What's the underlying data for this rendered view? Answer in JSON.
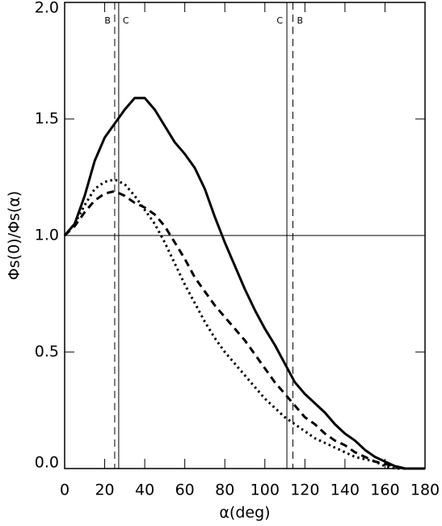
{
  "chart_data": {
    "type": "line",
    "xlabel": "α(deg)",
    "ylabel": "Φs(0)/Φs(α)",
    "x": [
      0,
      5,
      10,
      15,
      20,
      25,
      30,
      35,
      40,
      45,
      50,
      55,
      60,
      65,
      70,
      75,
      80,
      85,
      90,
      95,
      100,
      105,
      110,
      115,
      120,
      125,
      130,
      135,
      140,
      145,
      150,
      155,
      160,
      165,
      170,
      175,
      180
    ],
    "series": [
      {
        "color": "#000000",
        "dash": "solid",
        "values": [
          1.0,
          1.05,
          1.17,
          1.32,
          1.42,
          1.48,
          1.54,
          1.59,
          1.59,
          1.54,
          1.47,
          1.4,
          1.35,
          1.29,
          1.2,
          1.08,
          0.97,
          0.87,
          0.77,
          0.68,
          0.6,
          0.53,
          0.45,
          0.37,
          0.32,
          0.28,
          0.24,
          0.19,
          0.15,
          0.12,
          0.08,
          0.05,
          0.03,
          0.01,
          0.0,
          0.0,
          0.0
        ]
      },
      {
        "color": "#000000",
        "dash": "dashed",
        "values": [
          1.0,
          1.04,
          1.1,
          1.15,
          1.18,
          1.19,
          1.17,
          1.14,
          1.12,
          1.09,
          1.04,
          0.97,
          0.9,
          0.82,
          0.76,
          0.7,
          0.65,
          0.6,
          0.55,
          0.49,
          0.43,
          0.37,
          0.32,
          0.27,
          0.22,
          0.19,
          0.15,
          0.12,
          0.1,
          0.07,
          0.05,
          0.03,
          0.02,
          0.01,
          0.0,
          0.0,
          0.0
        ]
      },
      {
        "color": "#000000",
        "dash": "dotted",
        "values": [
          1.0,
          1.05,
          1.13,
          1.2,
          1.23,
          1.24,
          1.22,
          1.17,
          1.11,
          1.05,
          0.97,
          0.88,
          0.79,
          0.71,
          0.63,
          0.56,
          0.5,
          0.45,
          0.4,
          0.35,
          0.3,
          0.26,
          0.22,
          0.19,
          0.16,
          0.13,
          0.11,
          0.09,
          0.07,
          0.05,
          0.04,
          0.03,
          0.01,
          0.0,
          0.0,
          0.0,
          0.0
        ]
      }
    ],
    "xlim": [
      0,
      180
    ],
    "xticks": [
      0,
      20,
      40,
      60,
      80,
      100,
      120,
      140,
      160,
      180
    ],
    "ylim": [
      0,
      2
    ],
    "yticks": [
      {
        "value": 0,
        "label": "0.0"
      },
      0.5,
      {
        "value": 1,
        "label": "1.0"
      },
      1.5,
      {
        "value": 2,
        "label": "2.0"
      }
    ],
    "hline": 1,
    "vlines": [
      {
        "x": 25,
        "label": "B",
        "dash": "dashed"
      },
      {
        "x": 27,
        "label": "C",
        "dash": "solid"
      },
      {
        "x": 111,
        "label": "C",
        "dash": "solid"
      },
      {
        "x": 114,
        "label": "B",
        "dash": "dashed"
      }
    ]
  }
}
